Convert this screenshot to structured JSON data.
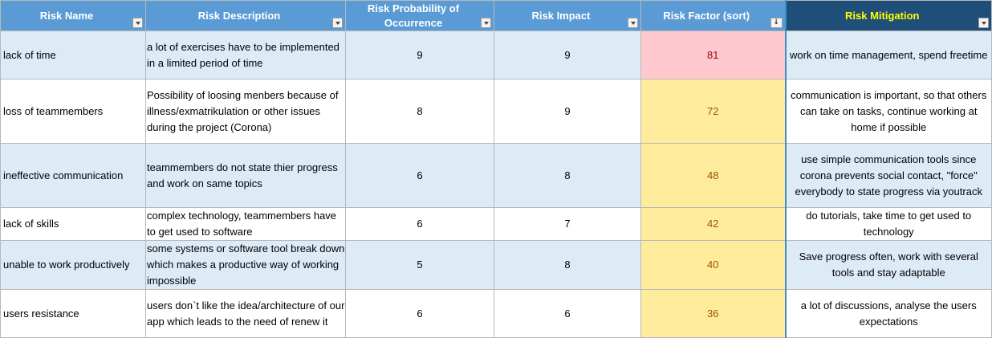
{
  "headers": {
    "risk_name": "Risk Name",
    "risk_description": "Risk Description",
    "probability": "Risk Probability of Occurrence",
    "impact": "Risk Impact",
    "factor": "Risk Factor (sort)",
    "mitigation": "Risk Mitigation"
  },
  "colors": {
    "header_bg": "#5b9bd5",
    "header_mitigation_bg": "#1f4e79",
    "header_mitigation_text": "#ffff00",
    "row_band": "#ddebf7",
    "factor_high_bg": "#ffc7ce",
    "factor_high_text": "#9c0006",
    "factor_medium_bg": "#ffeb9c",
    "factor_medium_text": "#9c5700"
  },
  "filter_icons": {
    "default": "filter-dropdown-icon",
    "factor": "sort-descending-filter-icon"
  },
  "rows": [
    {
      "name": "lack of time",
      "description": "a lot of exercises have to be implemented in a limited period of time",
      "probability": "9",
      "impact": "9",
      "factor": "81",
      "level": "high",
      "mitigation": "work on time management, spend freetime"
    },
    {
      "name": "loss of teammembers",
      "description": "Possibility of loosing menbers because of illness/exmatrikulation or other issues during the project (Corona)",
      "probability": "8",
      "impact": "9",
      "factor": "72",
      "level": "medium",
      "mitigation": "communication is important, so that others can take on tasks, continue working at home if possible"
    },
    {
      "name": "ineffective communication",
      "description": "teammembers do not state thier progress and work on same topics",
      "probability": "6",
      "impact": "8",
      "factor": "48",
      "level": "medium",
      "mitigation": "use simple communication tools since corona prevents social contact, \"force\" everybody to state progress via youtrack"
    },
    {
      "name": "lack of skills",
      "description": "complex technology, teammembers have to get used to software",
      "probability": "6",
      "impact": "7",
      "factor": "42",
      "level": "medium",
      "mitigation": "do tutorials, take time to get used to technology"
    },
    {
      "name": "unable to work productively",
      "description": "some systems or software tool break down which makes a productive way of working impossible",
      "probability": "5",
      "impact": "8",
      "factor": "40",
      "level": "medium",
      "mitigation": "Save progress often, work with several tools and stay adaptable"
    },
    {
      "name": "users resistance",
      "description": "users don`t like the idea/architecture of our app which leads to the need of renew it",
      "probability": "6",
      "impact": "6",
      "factor": "36",
      "level": "medium",
      "mitigation": "a lot of discussions, analyse the users expectations"
    }
  ]
}
